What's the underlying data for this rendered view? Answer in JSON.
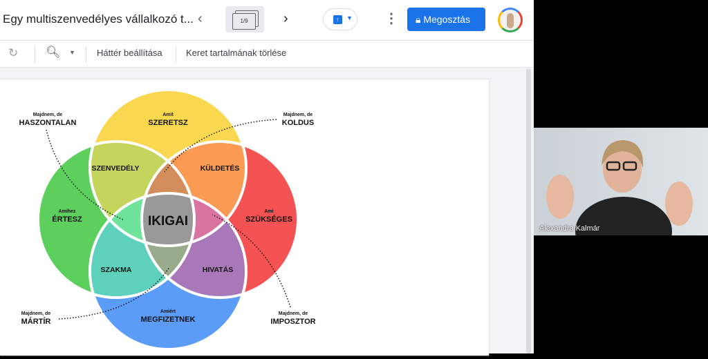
{
  "header": {
    "title": "Egy multiszenvedélyes vállalkozó t...",
    "slide_counter": "1/9",
    "share_label": "Megosztás",
    "prev_icon": "chevron-left-icon",
    "next_icon": "chevron-right-icon"
  },
  "toolbar": {
    "background_label": "Háttér beállítása",
    "clear_frame_label": "Keret tartalmának törlése"
  },
  "diagram": {
    "center": "IKIGAI",
    "circles": [
      {
        "small": "Amit",
        "big": "SZERETSZ",
        "color": "#f9d74e"
      },
      {
        "small": "Amihez",
        "big": "ÉRTESZ",
        "color": "#5ccf5c"
      },
      {
        "small": "Ami",
        "big": "SZÜKSÉGES",
        "color": "#f55353"
      },
      {
        "small": "Amiért",
        "big": "MEGFIZETNEK",
        "color": "#5a9cf7"
      }
    ],
    "overlaps": [
      "SZENVEDÉLY",
      "KÜLDETÉS",
      "SZAKMA",
      "HIVATÁS"
    ],
    "almost": [
      {
        "small": "Majdnem, de",
        "big": "HASZONTALAN"
      },
      {
        "small": "Majdnem, de",
        "big": "KOLDUS"
      },
      {
        "small": "Majdnem, de",
        "big": "MÁRTÍR"
      },
      {
        "small": "Majdnem, de",
        "big": "IMPOSZTOR"
      }
    ]
  },
  "video": {
    "participant": "Alexandra Kalmár"
  }
}
